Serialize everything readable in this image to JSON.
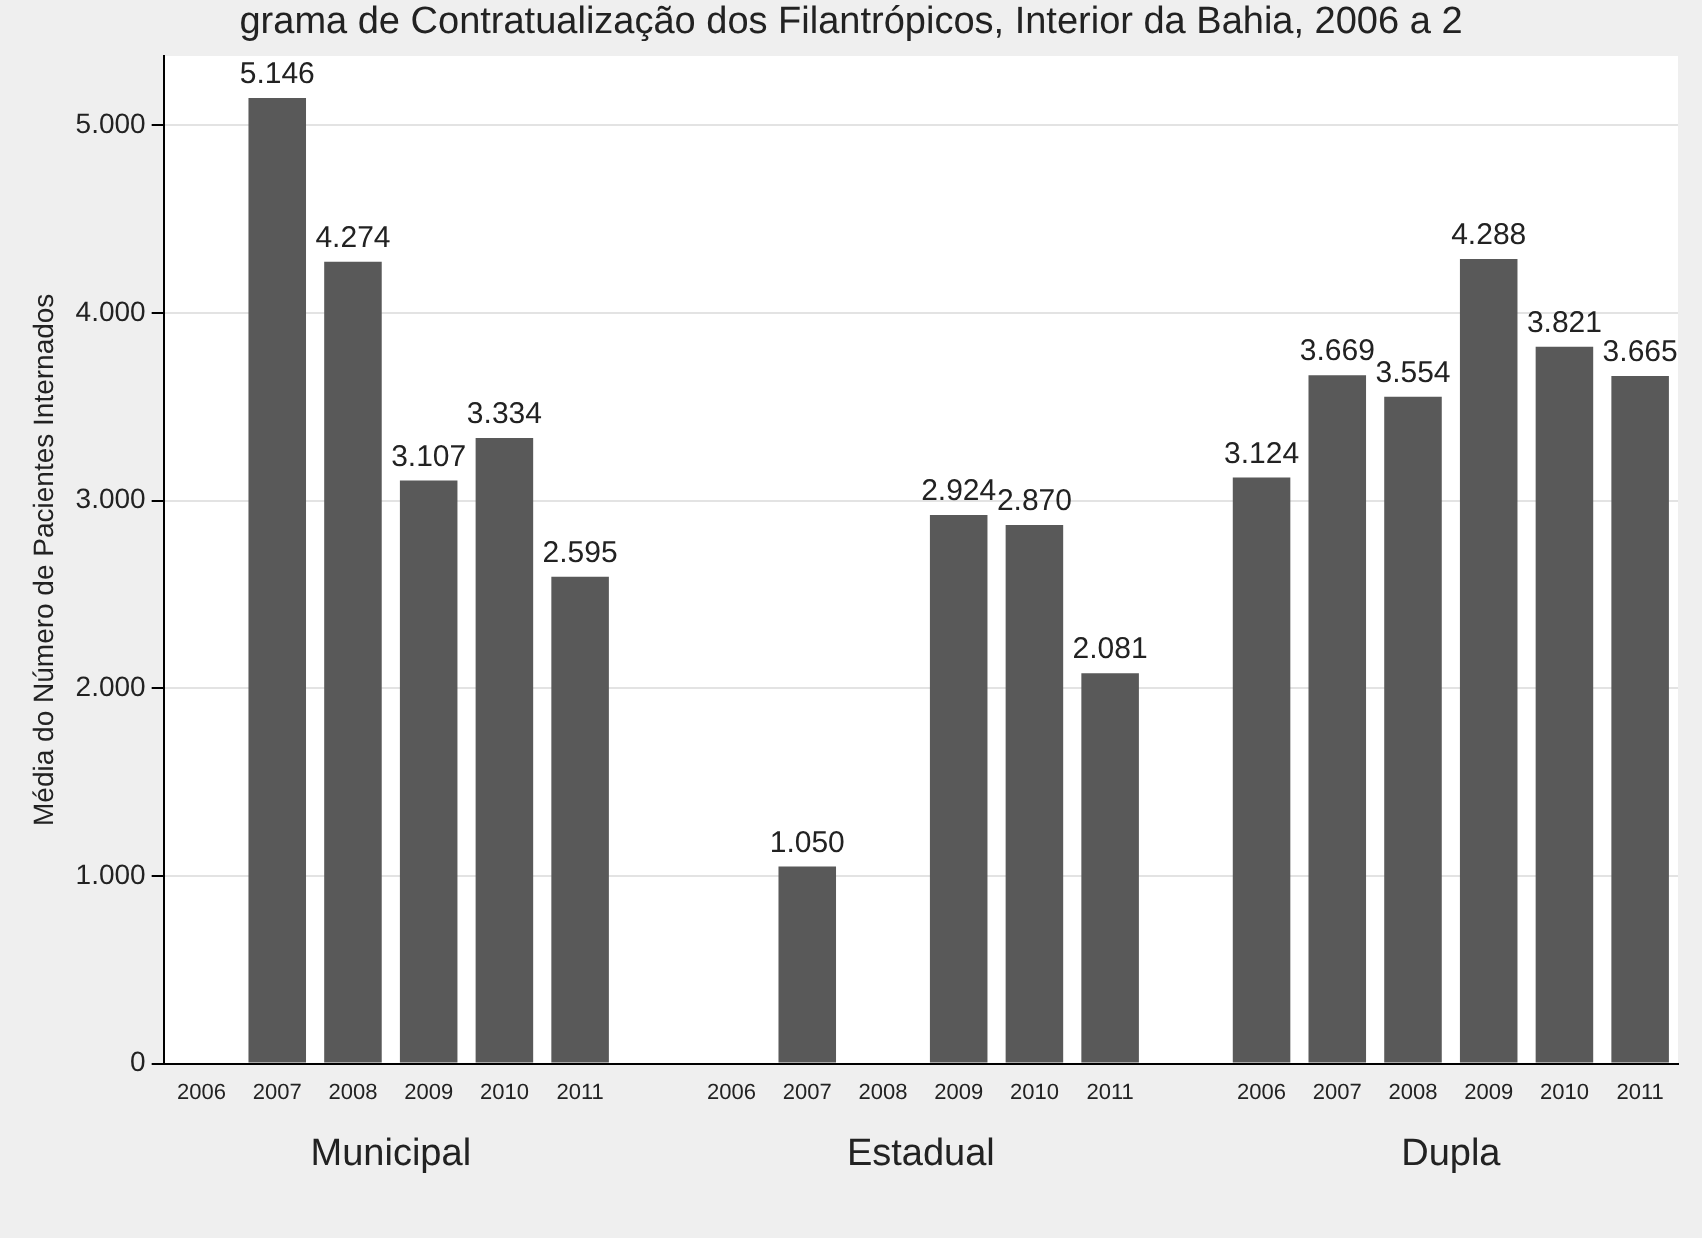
{
  "chart_data": {
    "type": "bar",
    "title": "grama de Contratualização dos Filantrópicos, Interior da Bahia, 2006 a 2",
    "ylabel": "Média do Número de Pacientes Internados",
    "categories": [
      "2006",
      "2007",
      "2008",
      "2009",
      "2010",
      "2011",
      null,
      "2006",
      "2007",
      "2008",
      "2009",
      "2010",
      "2011",
      null,
      "2006",
      "2007",
      "2008",
      "2009",
      "2010",
      "2011"
    ],
    "values": [
      null,
      5146,
      4274,
      3107,
      3334,
      2595,
      null,
      null,
      1050,
      null,
      2924,
      2870,
      2081,
      null,
      3124,
      3669,
      3554,
      4288,
      3821,
      3665
    ],
    "value_labels": [
      null,
      "5.146",
      "4.274",
      "3.107",
      "3.334",
      "2.595",
      null,
      null,
      "1.050",
      null,
      "2.924",
      "2.870",
      "2.081",
      null,
      "3.124",
      "3.669",
      "3.554",
      "4.288",
      "3.821",
      "3.665"
    ],
    "color": "#595959",
    "ylim": [
      0,
      5370
    ],
    "yticks": [
      0,
      {
        "value": 1000,
        "label": "1.000"
      },
      {
        "value": 2000,
        "label": "2.000"
      },
      {
        "value": 3000,
        "label": "3.000"
      },
      {
        "value": 4000,
        "label": "4.000"
      },
      {
        "value": 5000,
        "label": "5.000"
      }
    ],
    "grid": "y",
    "annotations": [
      "Municipal",
      "Estadual",
      "Dupla"
    ]
  }
}
